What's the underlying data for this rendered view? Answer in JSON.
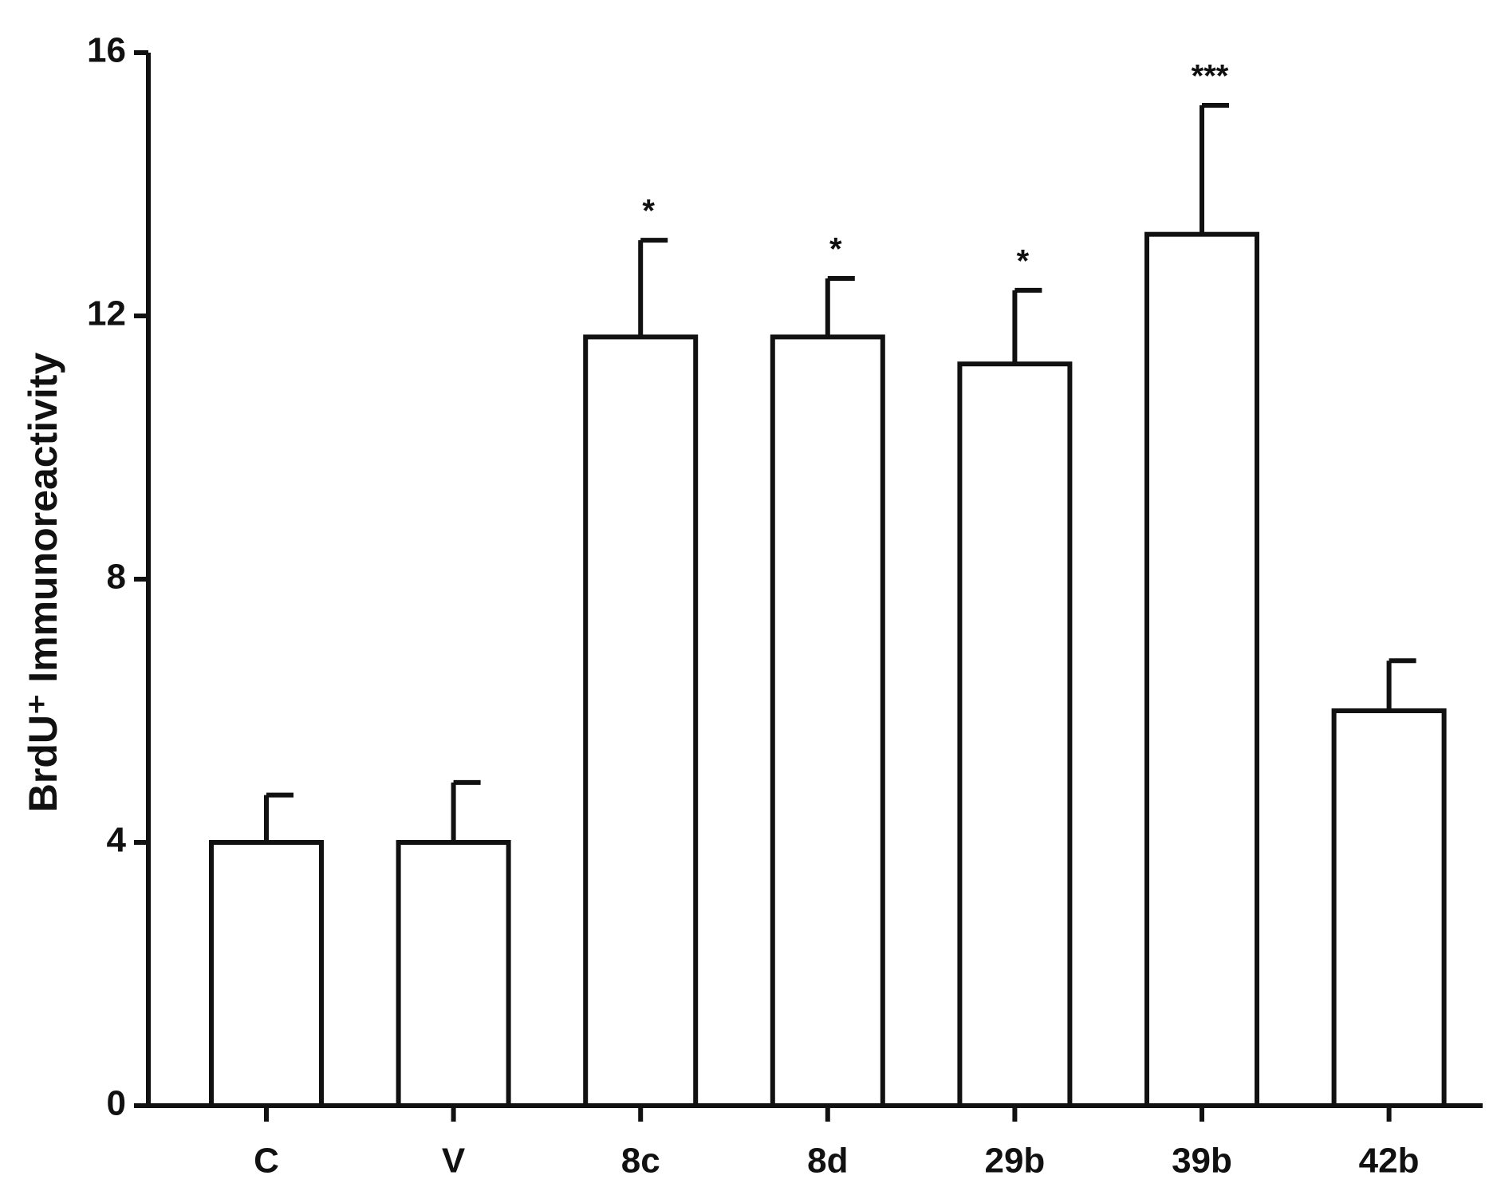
{
  "chart_data": {
    "type": "bar",
    "y_label": "BrdU⁺ Immunoreactivity",
    "categories": [
      "C",
      "V",
      "8c",
      "8d",
      "29b",
      "39b",
      "42b"
    ],
    "values": [
      4.0,
      4.0,
      11.68,
      11.68,
      11.27,
      13.24,
      6.0
    ],
    "errors": [
      0.72,
      0.91,
      1.47,
      0.89,
      1.12,
      1.96,
      0.76
    ],
    "annotations": [
      null,
      null,
      "*",
      "*",
      "*",
      "***",
      null
    ],
    "color": "#ffffff",
    "ylim": [
      0,
      16
    ],
    "yticks": [
      0,
      4,
      8,
      12,
      16
    ],
    "grid": false
  }
}
